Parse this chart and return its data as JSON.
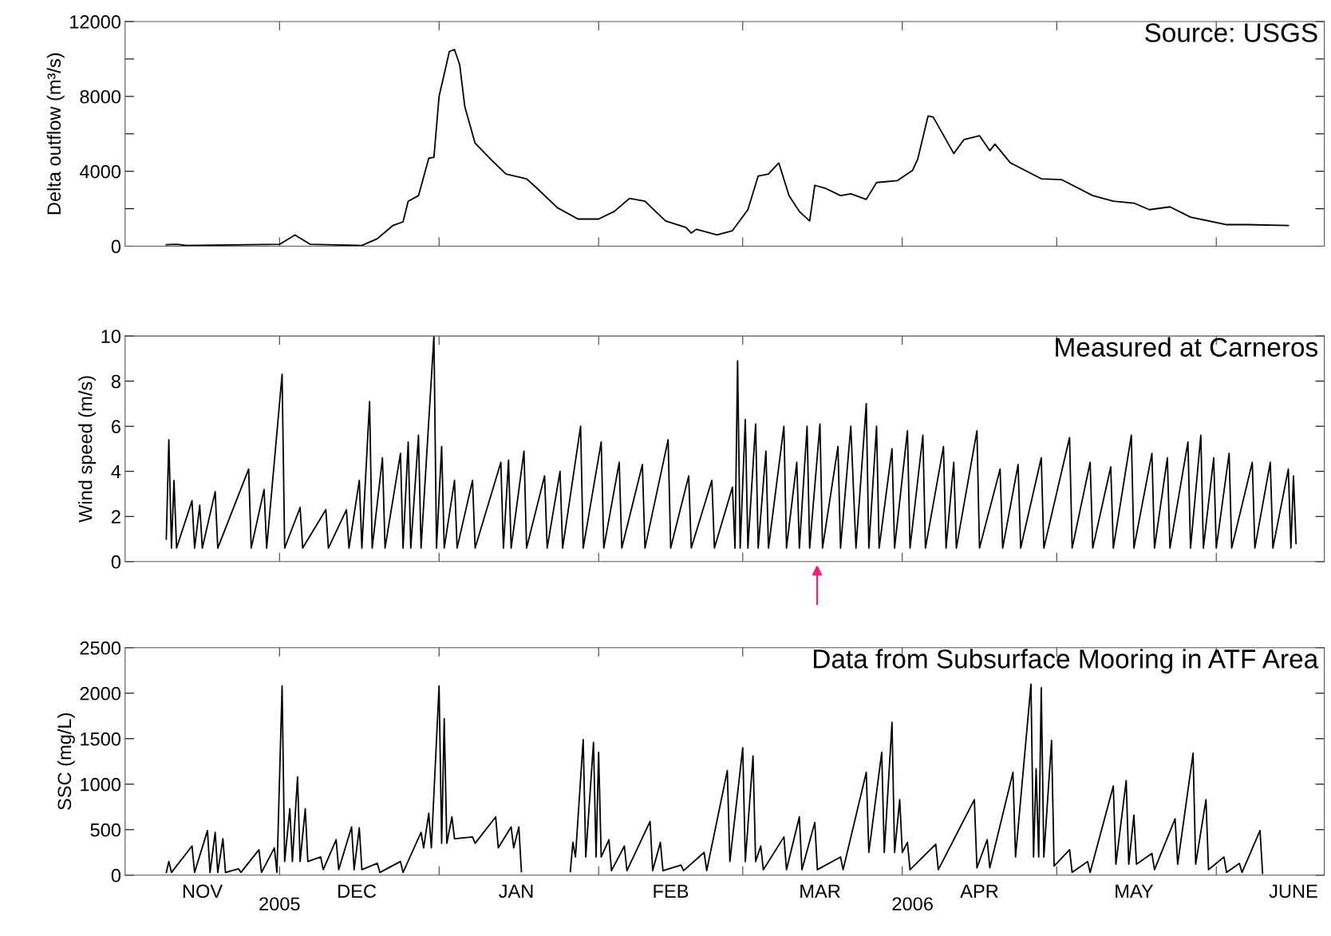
{
  "chart_data": [
    {
      "type": "line",
      "ylabel": "Delta outflow (m³/s)",
      "annotations": [
        "Source: USGS"
      ],
      "tick_labels": "y",
      "xlim": [
        "2005-11-01",
        "2006-06-22"
      ],
      "xticks": [
        {
          "value": "2005-12-01",
          "label": null
        },
        {
          "value": "2006-01-01",
          "label": null
        },
        {
          "value": "2006-02-01",
          "label": null
        },
        {
          "value": "2006-03-01",
          "label": null
        },
        {
          "value": "2006-04-01",
          "label": null
        },
        {
          "value": "2006-05-01",
          "label": null
        },
        {
          "value": "2006-06-01",
          "label": null
        }
      ],
      "ylim": [
        0,
        12000
      ],
      "yticks": [
        0,
        {
          "value": 2000,
          "label": null
        },
        4000,
        {
          "value": 6000,
          "label": null
        },
        8000,
        {
          "value": 10000,
          "label": null
        },
        12000
      ],
      "series": [
        {
          "color": "#000000",
          "x": [
            "2005-11-09",
            "2005-11-11",
            "2005-11-13",
            "2005-12-01",
            "2005-12-04",
            "2005-12-07",
            "2005-12-17",
            "2005-12-20",
            "2005-12-23",
            "2005-12-25",
            "2005-12-26",
            "2005-12-28",
            "2005-12-30",
            "2005-12-31",
            "2006-01-01",
            "2006-01-03",
            "2006-01-04",
            "2006-01-05",
            "2006-01-06",
            "2006-01-08",
            "2006-01-11",
            "2006-01-14",
            "2006-01-18",
            "2006-01-20",
            "2006-01-24",
            "2006-01-28",
            "2006-02-01",
            "2006-02-04",
            "2006-02-07",
            "2006-02-10",
            "2006-02-14",
            "2006-02-18",
            "2006-02-19",
            "2006-02-20",
            "2006-02-24",
            "2006-02-27",
            "2006-03-02",
            "2006-03-04",
            "2006-03-06",
            "2006-03-08",
            "2006-03-10",
            "2006-03-12",
            "2006-03-14",
            "2006-03-15",
            "2006-03-17",
            "2006-03-20",
            "2006-03-22",
            "2006-03-25",
            "2006-03-27",
            "2006-03-31",
            "2006-04-03",
            "2006-04-04",
            "2006-04-06",
            "2006-04-07",
            "2006-04-11",
            "2006-04-13",
            "2006-04-16",
            "2006-04-18",
            "2006-04-19",
            "2006-04-22",
            "2006-04-28",
            "2006-05-02",
            "2006-05-08",
            "2006-05-12",
            "2006-05-16",
            "2006-05-19",
            "2006-05-23",
            "2006-05-27",
            "2006-06-03",
            "2006-06-07",
            "2006-06-15"
          ],
          "values": [
            80,
            100,
            40,
            100,
            600,
            100,
            40,
            400,
            1100,
            1300,
            2400,
            2700,
            4700,
            4750,
            8000,
            10400,
            10500,
            9700,
            7450,
            5500,
            4650,
            3850,
            3600,
            3100,
            2050,
            1450,
            1450,
            1850,
            2550,
            2400,
            1350,
            1000,
            700,
            900,
            600,
            830,
            1950,
            3750,
            3850,
            4450,
            2700,
            1850,
            1350,
            3250,
            3100,
            2700,
            2800,
            2500,
            3400,
            3500,
            4050,
            4650,
            6950,
            6900,
            4950,
            5700,
            5900,
            5100,
            5450,
            4450,
            3600,
            3550,
            2700,
            2400,
            2300,
            1950,
            2100,
            1550,
            1150,
            1150,
            1100
          ]
        }
      ]
    },
    {
      "type": "line",
      "ylabel": "Wind speed (m/s)",
      "annotations": [
        "Measured at Carneros"
      ],
      "tick_labels": "y",
      "xlim": [
        "2005-11-01",
        "2006-06-22"
      ],
      "xticks": [
        {
          "value": "2005-12-01",
          "label": null
        },
        {
          "value": "2006-01-01",
          "label": null
        },
        {
          "value": "2006-02-01",
          "label": null
        },
        {
          "value": "2006-03-01",
          "label": null
        },
        {
          "value": "2006-04-01",
          "label": null
        },
        {
          "value": "2006-05-01",
          "label": null
        },
        {
          "value": "2006-06-01",
          "label": null
        }
      ],
      "ylim": [
        0,
        10
      ],
      "yticks": [
        0,
        2,
        4,
        6,
        8,
        10
      ],
      "series": [
        {
          "color": "#000000",
          "x": [
            "2005-11-09",
            "2005-11-09T12:00",
            "2005-11-10",
            "2005-11-10T12:00",
            "2005-11-11",
            "2005-11-14",
            "2005-11-14T12:00",
            "2005-11-15T12:00",
            "2005-11-16",
            "2005-11-18T12:00",
            "2005-11-19",
            "2005-11-25",
            "2005-11-25T12:00",
            "2005-11-28",
            "2005-11-28T12:00",
            "2005-12-01T12:00",
            "2005-12-02",
            "2005-12-05",
            "2005-12-05T12:00",
            "2005-12-10",
            "2005-12-10T12:00",
            "2005-12-14",
            "2005-12-14T12:00",
            "2005-12-16T12:00",
            "2005-12-17",
            "2005-12-18T12:00",
            "2005-12-19",
            "2005-12-21",
            "2005-12-21T12:00",
            "2005-12-24T12:00",
            "2005-12-25",
            "2005-12-26",
            "2005-12-26T12:00",
            "2005-12-28",
            "2005-12-28T12:00",
            "2005-12-31",
            "2005-12-31T12:00",
            "2006-01-01T12:00",
            "2006-01-02",
            "2006-01-04",
            "2006-01-04T12:00",
            "2006-01-07T12:00",
            "2006-01-08",
            "2006-01-13",
            "2006-01-13T12:00",
            "2006-01-14T12:00",
            "2006-01-15",
            "2006-01-17T12:00",
            "2006-01-18",
            "2006-01-21T12:00",
            "2006-01-22",
            "2006-01-24T12:00",
            "2006-01-25",
            "2006-01-28T12:00",
            "2006-01-29",
            "2006-02-01T12:00",
            "2006-02-02",
            "2006-02-05",
            "2006-02-05T12:00",
            "2006-02-09T12:00",
            "2006-02-10",
            "2006-02-14T12:00",
            "2006-02-15",
            "2006-02-18T12:00",
            "2006-02-19",
            "2006-02-23",
            "2006-02-23T12:00",
            "2006-02-27",
            "2006-02-27T12:00",
            "2006-02-28",
            "2006-02-28T12:00",
            "2006-03-01T12:00",
            "2006-03-02",
            "2006-03-03T12:00",
            "2006-03-04",
            "2006-03-05T12:00",
            "2006-03-06",
            "2006-03-09",
            "2006-03-09T12:00",
            "2006-03-11T12:00",
            "2006-03-12",
            "2006-03-13T12:00",
            "2006-03-14",
            "2006-03-16",
            "2006-03-16T12:00",
            "2006-03-19T12:00",
            "2006-03-20",
            "2006-03-22",
            "2006-03-23",
            "2006-03-25",
            "2006-03-25T12:00",
            "2006-03-27",
            "2006-03-27T12:00",
            "2006-03-30",
            "2006-03-30T12:00",
            "2006-04-02",
            "2006-04-02T12:00",
            "2006-04-05",
            "2006-04-05T12:00",
            "2006-04-09",
            "2006-04-09T12:00",
            "2006-04-11",
            "2006-04-11T12:00",
            "2006-04-15T12:00",
            "2006-04-16",
            "2006-04-20",
            "2006-04-20T12:00",
            "2006-04-23T12:00",
            "2006-04-24",
            "2006-04-28",
            "2006-04-28T12:00",
            "2006-05-03T12:00",
            "2006-05-04",
            "2006-05-07T12:00",
            "2006-05-08",
            "2006-05-11T12:00",
            "2006-05-12",
            "2006-05-15T12:00",
            "2006-05-16",
            "2006-05-19T12:00",
            "2006-05-20",
            "2006-05-22T12:00",
            "2006-05-23",
            "2006-05-26T12:00",
            "2006-05-27",
            "2006-05-29",
            "2006-05-29T12:00",
            "2006-05-31T12:00",
            "2006-06-01",
            "2006-06-03T12:00",
            "2006-06-04",
            "2006-06-08",
            "2006-06-08T12:00",
            "2006-06-11T12:00",
            "2006-06-12",
            "2006-06-15",
            "2006-06-15T12:00",
            "2006-06-16",
            "2006-06-16T12:00"
          ],
          "values": [
            1.0,
            5.4,
            0.6,
            3.6,
            0.6,
            2.7,
            0.6,
            2.5,
            0.6,
            3.1,
            0.6,
            4.1,
            0.6,
            3.2,
            0.6,
            8.3,
            0.6,
            2.4,
            0.6,
            2.3,
            0.6,
            2.3,
            0.6,
            3.6,
            0.6,
            7.1,
            0.6,
            4.6,
            0.6,
            4.8,
            0.6,
            5.3,
            0.6,
            5.6,
            0.6,
            10.0,
            0.6,
            5.1,
            0.6,
            3.6,
            0.6,
            3.6,
            0.6,
            4.4,
            0.6,
            4.5,
            0.6,
            4.9,
            0.6,
            3.8,
            0.6,
            4.0,
            0.6,
            6.0,
            0.6,
            5.3,
            0.6,
            4.4,
            0.6,
            4.3,
            0.6,
            5.4,
            0.6,
            3.8,
            0.6,
            3.6,
            0.6,
            3.3,
            0.6,
            8.9,
            0.6,
            6.3,
            0.6,
            6.1,
            0.6,
            4.9,
            0.6,
            6.0,
            0.6,
            4.4,
            0.6,
            6.0,
            0.6,
            6.1,
            0.6,
            5.1,
            0.6,
            6.0,
            0.6,
            7.0,
            0.6,
            6.0,
            0.6,
            5.0,
            0.6,
            5.8,
            0.6,
            5.6,
            0.6,
            5.1,
            0.6,
            4.4,
            0.6,
            5.8,
            0.6,
            4.1,
            0.6,
            4.3,
            0.6,
            4.6,
            0.6,
            5.5,
            0.6,
            4.4,
            0.6,
            4.2,
            0.6,
            5.6,
            0.6,
            4.8,
            0.6,
            4.6,
            0.6,
            5.3,
            0.6,
            5.6,
            0.6,
            4.6,
            0.6,
            4.8,
            0.6,
            4.4,
            0.6,
            4.4,
            0.6,
            4.1,
            0.6,
            3.8,
            0.8
          ]
        }
      ]
    },
    {
      "type": "line",
      "ylabel": "SSC (mg/L)",
      "annotations": [
        "Data from Subsurface Mooring in ATF Area"
      ],
      "xlim": [
        "2005-11-01",
        "2006-06-22"
      ],
      "xticks": [
        {
          "value": "2005-12-01",
          "label": null
        },
        {
          "value": "2006-01-01",
          "label": null
        },
        {
          "value": "2006-02-01",
          "label": null
        },
        {
          "value": "2006-03-01",
          "label": null
        },
        {
          "value": "2006-04-01",
          "label": null
        },
        {
          "value": "2006-05-01",
          "label": null
        },
        {
          "value": "2006-06-01",
          "label": null
        },
        {
          "value": "2005-11-16",
          "label": "NOV"
        },
        {
          "value": "2005-12-16",
          "label": "DEC"
        },
        {
          "value": "2006-01-16",
          "label": "JAN"
        },
        {
          "value": "2006-02-15",
          "label": "FEB"
        },
        {
          "value": "2006-03-16",
          "label": "MAR"
        },
        {
          "value": "2006-04-16",
          "label": "APR"
        },
        {
          "value": "2006-05-16",
          "label": "MAY"
        },
        {
          "value": "2006-06-16",
          "label": "JUNE"
        }
      ],
      "x2lim": [
        "2005-11-01",
        "2006-06-22"
      ],
      "x2ticks": [
        {
          "value": "2005-12-01",
          "label": "2005"
        },
        {
          "value": "2006-04-03",
          "label": "2006"
        }
      ],
      "ylim": [
        0,
        2500
      ],
      "yticks": [
        0,
        500,
        1000,
        1500,
        2000,
        2500
      ],
      "series": [
        {
          "color": "#000000",
          "x": [
            "2005-11-09",
            "2005-11-09T12:00",
            "2005-11-10",
            "2005-11-14",
            "2005-11-14T12:00",
            "2005-11-17",
            "2005-11-17T12:00",
            "2005-11-18T12:00",
            "2005-11-19",
            "2005-11-20",
            "2005-11-20T12:00",
            "2005-11-23",
            "2005-11-23T12:00",
            "2005-11-27",
            "2005-11-27T12:00",
            "2005-11-30",
            "2005-11-30T12:00",
            "2005-12-01T12:00",
            "2005-12-02",
            "2005-12-03",
            "2005-12-03T12:00",
            "2005-12-04T12:00",
            "2005-12-05",
            "2005-12-06",
            "2005-12-06T12:00",
            "2005-12-09",
            "2005-12-09T12:00",
            "2005-12-12",
            "2005-12-12T12:00",
            "2005-12-15",
            "2005-12-15T12:00",
            "2005-12-16T12:00",
            "2005-12-17",
            "2005-12-20",
            "2005-12-20T12:00",
            "2005-12-24T12:00",
            "2005-12-25",
            "2005-12-28T12:00",
            "2005-12-29",
            "2005-12-30",
            "2005-12-30T12:00",
            "2006-01-01",
            "2006-01-01T12:00",
            "2006-01-02",
            "2006-01-02T12:00",
            "2006-01-03T12:00",
            "2006-01-04",
            "2006-01-07T12:00",
            "2006-01-08",
            "2006-01-12",
            "2006-01-12T12:00",
            "2006-01-15",
            "2006-01-15T12:00",
            "2006-01-16T12:00",
            "2006-01-17",
            "2006-01-21",
            "2006-01-26T12:00",
            "2006-01-27",
            "2006-01-27T12:00",
            "2006-01-29",
            "2006-01-29T12:00",
            "2006-01-31",
            "2006-01-31T12:00",
            "2006-02-01",
            "2006-02-01T12:00",
            "2006-02-03",
            "2006-02-03T12:00",
            "2006-02-06",
            "2006-02-06T12:00",
            "2006-02-11",
            "2006-02-11T12:00",
            "2006-02-13",
            "2006-02-13T12:00",
            "2006-02-17",
            "2006-02-17T12:00",
            "2006-02-21T12:00",
            "2006-02-22",
            "2006-02-26",
            "2006-02-26T12:00",
            "2006-03-01",
            "2006-03-01T12:00",
            "2006-03-03",
            "2006-03-03T12:00",
            "2006-03-04T12:00",
            "2006-03-05",
            "2006-03-09",
            "2006-03-09T12:00",
            "2006-03-12",
            "2006-03-12T12:00",
            "2006-03-15",
            "2006-03-15T12:00",
            "2006-03-20",
            "2006-03-20T12:00",
            "2006-03-25",
            "2006-03-25T12:00",
            "2006-03-28",
            "2006-03-28T12:00",
            "2006-03-30",
            "2006-03-30T12:00",
            "2006-03-31T12:00",
            "2006-04-01",
            "2006-04-02",
            "2006-04-02T12:00",
            "2006-04-07T12:00",
            "2006-04-08",
            "2006-04-15",
            "2006-04-15T12:00",
            "2006-04-17T12:00",
            "2006-04-18",
            "2006-04-22T12:00",
            "2006-04-23",
            "2006-04-26",
            "2006-04-26T12:00",
            "2006-04-27",
            "2006-04-27T12:00",
            "2006-04-28",
            "2006-04-28T12:00",
            "2006-04-30",
            "2006-04-30T12:00",
            "2006-05-03T12:00",
            "2006-05-04",
            "2006-05-07",
            "2006-05-07T12:00",
            "2006-05-12",
            "2006-05-12T12:00",
            "2006-05-14T12:00",
            "2006-05-15",
            "2006-05-16",
            "2006-05-16T12:00",
            "2006-05-19T12:00",
            "2006-05-20",
            "2006-05-24",
            "2006-05-24T12:00",
            "2006-05-27T12:00",
            "2006-05-28",
            "2006-05-30",
            "2006-05-30T12:00",
            "2006-06-02T12:00",
            "2006-06-03",
            "2006-06-05T12:00",
            "2006-06-06",
            "2006-06-09T12:00",
            "2006-06-10"
          ],
          "values": [
            30,
            150,
            30,
            320,
            30,
            490,
            30,
            470,
            30,
            400,
            30,
            70,
            30,
            280,
            30,
            300,
            30,
            2080,
            150,
            730,
            150,
            1080,
            150,
            730,
            150,
            200,
            60,
            390,
            60,
            530,
            60,
            520,
            60,
            130,
            30,
            150,
            30,
            470,
            300,
            680,
            300,
            2080,
            350,
            1720,
            350,
            640,
            400,
            420,
            350,
            640,
            300,
            530,
            300,
            530,
            40,
            null,
            40,
            360,
            200,
            1490,
            200,
            1460,
            200,
            1350,
            200,
            390,
            50,
            320,
            50,
            590,
            50,
            360,
            50,
            110,
            50,
            250,
            50,
            1150,
            150,
            1400,
            150,
            1310,
            150,
            320,
            60,
            420,
            60,
            640,
            60,
            580,
            60,
            200,
            60,
            1130,
            250,
            1350,
            250,
            1680,
            250,
            830,
            250,
            360,
            60,
            340,
            60,
            830,
            80,
            390,
            80,
            1130,
            200,
            2100,
            200,
            1170,
            200,
            2060,
            200,
            1480,
            100,
            280,
            30,
            150,
            30,
            980,
            120,
            1040,
            120,
            660,
            120,
            240,
            60,
            620,
            120,
            1340,
            120,
            830,
            60,
            200,
            30,
            130,
            30,
            490,
            20
          ]
        }
      ]
    }
  ]
}
